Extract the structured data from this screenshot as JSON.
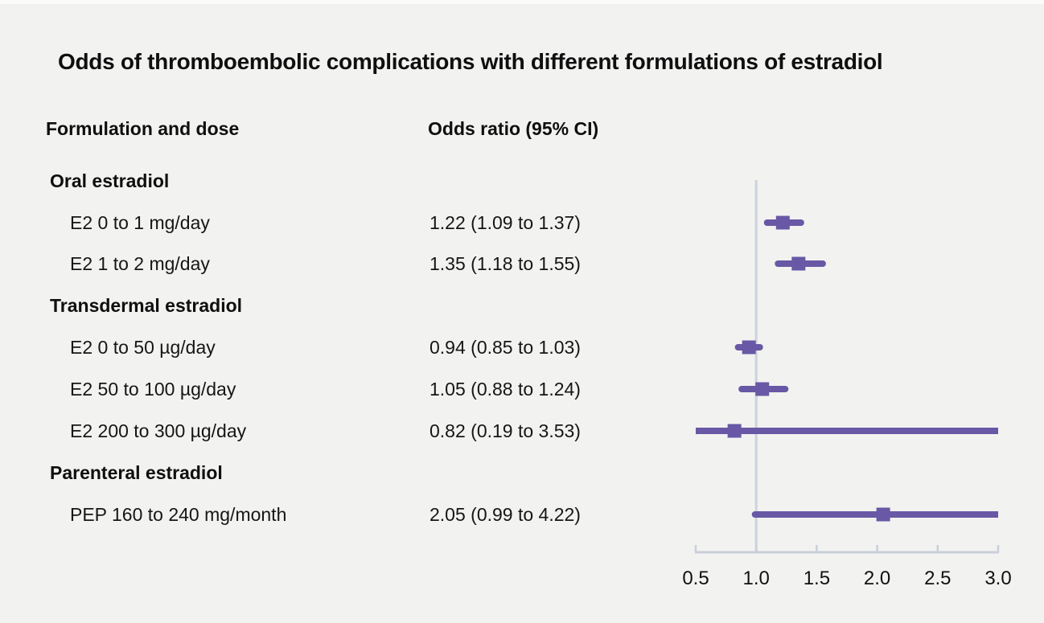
{
  "title": "Odds of thromboembolic complications with different formulations of estradiol",
  "columns": {
    "formulation": "Formulation and dose",
    "odds_ratio": "Odds ratio (95% CI)"
  },
  "rows": [
    {
      "type": "group",
      "label": "Oral estradiol",
      "or_text": ""
    },
    {
      "type": "item",
      "label": "E2 0 to 1 mg/day",
      "or_text": "1.22 (1.09 to 1.37)"
    },
    {
      "type": "item",
      "label": "E2 1 to 2 mg/day",
      "or_text": "1.35 (1.18 to 1.55)"
    },
    {
      "type": "group",
      "label": "Transdermal estradiol",
      "or_text": ""
    },
    {
      "type": "item",
      "label": "E2 0 to 50 µg/day",
      "or_text": "0.94 (0.85 to 1.03)"
    },
    {
      "type": "item",
      "label": "E2 50 to 100 µg/day",
      "or_text": "1.05 (0.88 to 1.24)"
    },
    {
      "type": "item",
      "label": "E2 200 to 300 µg/day",
      "or_text": "0.82 (0.19 to 3.53)"
    },
    {
      "type": "group",
      "label": "Parenteral estradiol",
      "or_text": ""
    },
    {
      "type": "item",
      "label": "PEP 160 to 240 mg/month",
      "or_text": "2.05 (0.99 to 4.22)"
    }
  ],
  "chart_data": {
    "type": "scatter",
    "subtype": "forest-plot",
    "title": "Odds of thromboembolic complications with different formulations of estradiol",
    "xlabel": "Odds ratio (95% CI)",
    "xlim": [
      0.5,
      3.0
    ],
    "x_ticks": [
      0.5,
      1.0,
      1.5,
      2.0,
      2.5,
      3.0
    ],
    "reference_line_x": 1.0,
    "grid": false,
    "legend_position": "none",
    "points": [
      {
        "label": "E2 0 to 1 mg/day",
        "group": "Oral estradiol",
        "or": 1.22,
        "ci_low": 1.09,
        "ci_high": 1.37
      },
      {
        "label": "E2 1 to 2 mg/day",
        "group": "Oral estradiol",
        "or": 1.35,
        "ci_low": 1.18,
        "ci_high": 1.55
      },
      {
        "label": "E2 0 to 50 µg/day",
        "group": "Transdermal estradiol",
        "or": 0.94,
        "ci_low": 0.85,
        "ci_high": 1.03
      },
      {
        "label": "E2 50 to 100 µg/day",
        "group": "Transdermal estradiol",
        "or": 1.05,
        "ci_low": 0.88,
        "ci_high": 1.24
      },
      {
        "label": "E2 200 to 300 µg/day",
        "group": "Transdermal estradiol",
        "or": 0.82,
        "ci_low": 0.19,
        "ci_high": 3.53
      },
      {
        "label": "PEP 160 to 240 mg/month",
        "group": "Parenteral estradiol",
        "or": 2.05,
        "ci_low": 0.99,
        "ci_high": 4.22
      }
    ]
  },
  "colors": {
    "background": "#f2f2f1",
    "marker": "#6858a5",
    "reference_line": "#ccd3dd",
    "axis": "#c9cfd9",
    "text": "#111111"
  }
}
